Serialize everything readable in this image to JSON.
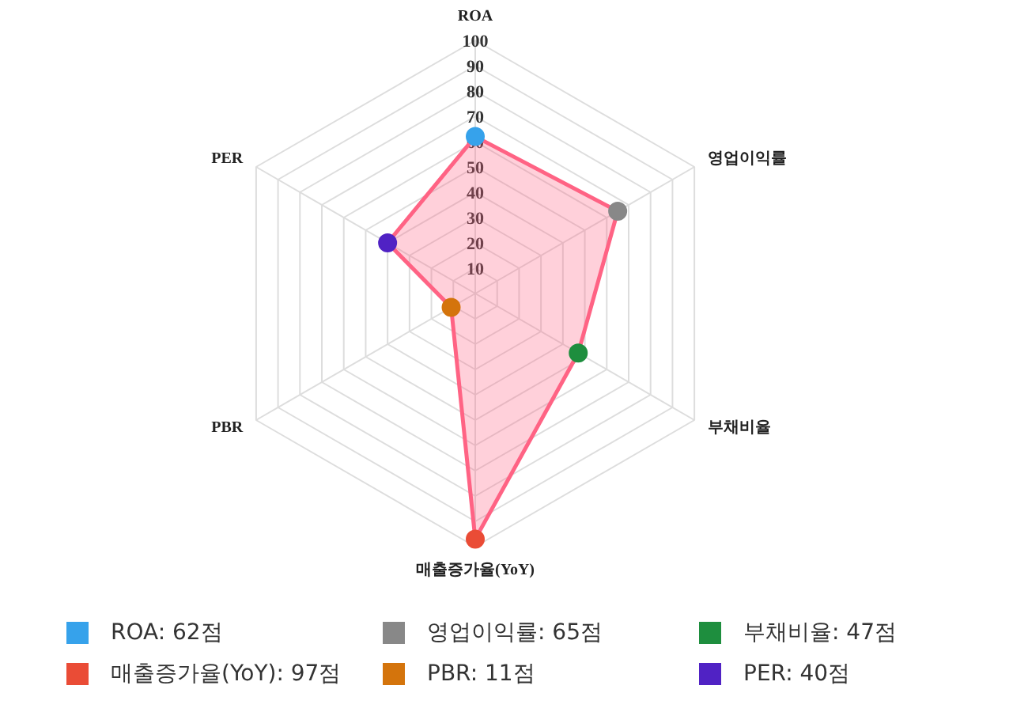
{
  "chart_data": {
    "type": "radar",
    "categories": [
      "ROA",
      "영업이익률",
      "부채비율",
      "매출증가율(YoY)",
      "PBR",
      "PER"
    ],
    "series": [
      {
        "color": "#ff6384",
        "values": [
          62,
          65,
          47,
          97,
          11,
          40
        ],
        "colors": [
          "#36a2eb",
          "#888888",
          "#1e8e3e",
          "#ea4c36",
          "#d4740c",
          "#5022c4"
        ]
      }
    ],
    "ylim": [
      0,
      100
    ],
    "yticks": [
      10,
      20,
      30,
      40,
      50,
      60,
      70,
      80,
      90,
      100
    ],
    "marker": "circle",
    "grid": true,
    "annotations": [
      "ROA: 62점",
      "영업이익률: 65점",
      "부채비율: 47점",
      "매출증가율(YoY): 97점",
      "PBR: 11점",
      "PER: 40점"
    ]
  }
}
